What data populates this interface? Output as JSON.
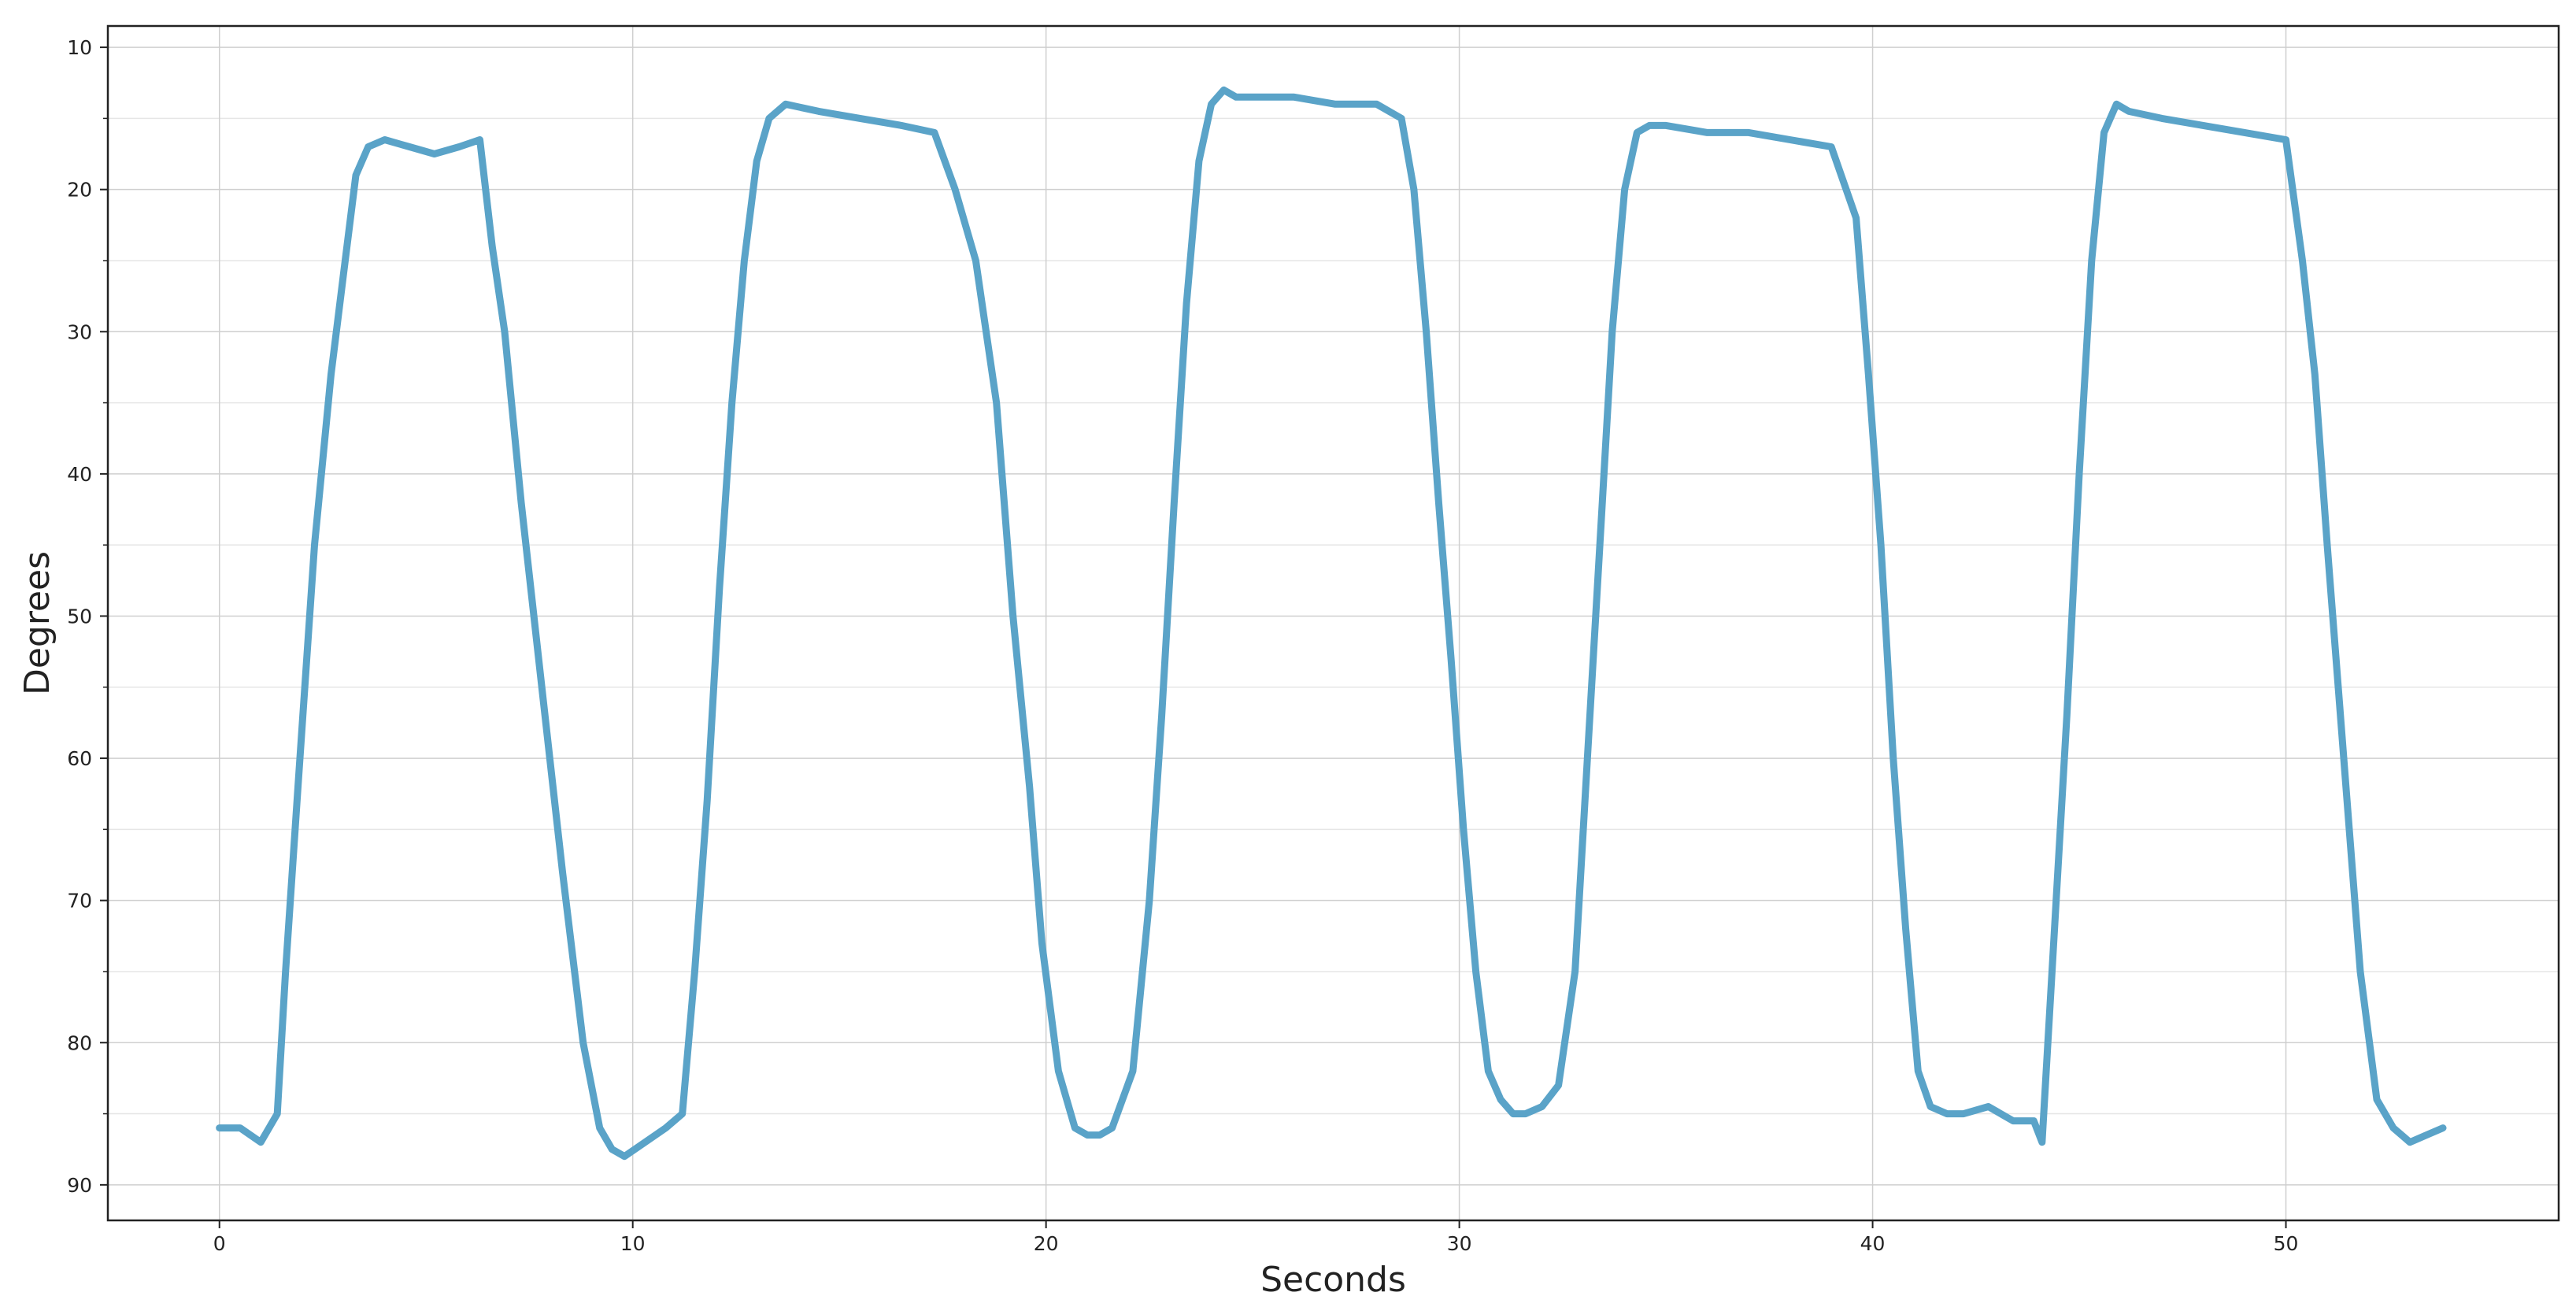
{
  "chart_data": {
    "type": "line",
    "title": "",
    "xlabel": "Seconds",
    "ylabel": "Degrees",
    "xlim": [
      -2.7,
      56.6
    ],
    "ylim": [
      92.5,
      8.5
    ],
    "y_inverted": true,
    "grid": true,
    "legend": "none",
    "x_ticks": [
      0,
      10,
      20,
      30,
      40,
      50
    ],
    "y_ticks": [
      10,
      20,
      30,
      40,
      50,
      60,
      70,
      80,
      90
    ],
    "x_tick_labels": [
      "0",
      "10",
      "20",
      "30",
      "40",
      "50"
    ],
    "y_tick_labels": [
      "10",
      "20",
      "30",
      "40",
      "50",
      "60",
      "70",
      "80",
      "90"
    ],
    "series": [
      {
        "color": "#5aa3c8",
        "x": [
          0,
          0.5,
          1.0,
          1.4,
          1.6,
          1.9,
          2.3,
          2.7,
          3.0,
          3.3,
          3.6,
          4.0,
          4.6,
          5.2,
          5.8,
          6.3,
          6.6,
          6.9,
          7.3,
          7.8,
          8.3,
          8.8,
          9.2,
          9.5,
          9.8,
          10.3,
          10.8,
          11.2,
          11.5,
          11.8,
          12.1,
          12.4,
          12.7,
          13.0,
          13.3,
          13.7,
          14.5,
          15.5,
          16.5,
          17.3,
          17.8,
          18.3,
          18.8,
          19.2,
          19.6,
          19.9,
          20.3,
          20.7,
          21.0,
          21.3,
          21.6,
          22.1,
          22.5,
          22.8,
          23.1,
          23.4,
          23.7,
          24.0,
          24.3,
          24.6,
          25.0,
          26.0,
          27.0,
          28.0,
          28.6,
          28.9,
          29.2,
          29.5,
          29.8,
          30.1,
          30.4,
          30.7,
          31.0,
          31.3,
          31.6,
          32.0,
          32.4,
          32.8,
          33.1,
          33.4,
          33.7,
          34.0,
          34.3,
          34.6,
          35.0,
          36.0,
          37.0,
          38.0,
          39.0,
          39.6,
          39.9,
          40.2,
          40.5,
          40.8,
          41.1,
          41.4,
          41.8,
          42.2,
          42.8,
          43.4,
          43.9,
          44.1,
          44.4,
          44.7,
          45.0,
          45.3,
          45.6,
          45.9,
          46.2,
          47.0,
          48.0,
          49.0,
          50.0,
          50.4,
          50.7,
          51.0,
          51.4,
          51.8,
          52.2,
          52.6,
          53.0,
          53.4,
          53.8
        ],
        "y": [
          86,
          86,
          87,
          85,
          75,
          62,
          45,
          33,
          26,
          19,
          17,
          16.5,
          17,
          17.5,
          17,
          16.5,
          24,
          30,
          42,
          55,
          68,
          80,
          86,
          87.5,
          88,
          87,
          86,
          85,
          75,
          63,
          48,
          35,
          25,
          18,
          15,
          14,
          14.5,
          15,
          15.5,
          16,
          20,
          25,
          35,
          50,
          62,
          73,
          82,
          86,
          86.5,
          86.5,
          86,
          82,
          70,
          57,
          42,
          28,
          18,
          14,
          13,
          13.5,
          13.5,
          13.5,
          14,
          14,
          15,
          20,
          30,
          42,
          53,
          65,
          75,
          82,
          84,
          85,
          85,
          84.5,
          83,
          75,
          60,
          45,
          30,
          20,
          16,
          15.5,
          15.5,
          16,
          16,
          16.5,
          17,
          22,
          33,
          45,
          60,
          72,
          82,
          84.5,
          85,
          85,
          84.5,
          85.5,
          85.5,
          87,
          72,
          57,
          40,
          25,
          16,
          14,
          14.5,
          15,
          15.5,
          16,
          16.5,
          25,
          33,
          45,
          60,
          75,
          84,
          86,
          87,
          86.5,
          86
        ]
      }
    ]
  }
}
